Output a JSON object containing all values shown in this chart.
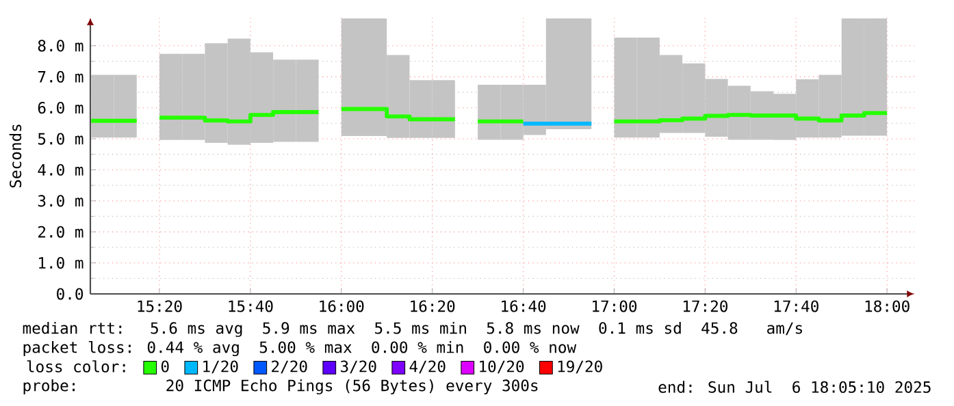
{
  "chart_data": {
    "type": "bar",
    "ylabel": "Seconds",
    "legend": "bottom",
    "legend_title": "loss color:",
    "grid": true,
    "xlim": [
      15.08,
      18.1
    ],
    "ylim": [
      0,
      8.9
    ],
    "xticks": [
      {
        "value": 15.3333,
        "label": "15:20"
      },
      {
        "value": 15.6667,
        "label": "15:40"
      },
      {
        "value": 16,
        "label": "16:00"
      },
      {
        "value": 16.3333,
        "label": "16:20"
      },
      {
        "value": 16.6667,
        "label": "16:40"
      },
      {
        "value": 17,
        "label": "17:00"
      },
      {
        "value": 17.3333,
        "label": "17:20"
      },
      {
        "value": 17.6667,
        "label": "17:40"
      },
      {
        "value": 18,
        "label": "18:00"
      }
    ],
    "yticks": [
      {
        "value": 0,
        "label": "0.0"
      },
      {
        "value": 1,
        "label": "1.0 m"
      },
      {
        "value": 2,
        "label": "2.0 m"
      },
      {
        "value": 3,
        "label": "3.0 m"
      },
      {
        "value": 4,
        "label": "4.0 m"
      },
      {
        "value": 5,
        "label": "5.0 m"
      },
      {
        "value": 6,
        "label": "6.0 m"
      },
      {
        "value": 7,
        "label": "7.0 m"
      },
      {
        "value": 8,
        "label": "8.0 m"
      }
    ],
    "annotations": [
      "median rtt:  5.6 ms avg  5.9 ms max  5.5 ms min  5.8 ms now  0.1 ms sd  45.8   am/s",
      "packet loss: 0.44 % avg  5.00 % max  0.00 % min  0.00 % now",
      "probe:       20 ICMP Echo Pings (56 Bytes) every 300s",
      "end: Sun Jul  6 18:05:10 2025"
    ],
    "series": [
      {
        "color": "#c4c4c4",
        "x": [
          15.125,
          15.2083,
          15.375,
          15.4583,
          15.5417,
          15.625,
          15.7083,
          15.7917,
          15.875,
          16.0417,
          16.125,
          16.2083,
          16.2917,
          16.375,
          16.5417,
          16.625,
          16.7083,
          16.7917,
          16.875,
          17.0417,
          17.125,
          17.2083,
          17.2917,
          17.375,
          17.4583,
          17.5417,
          17.625,
          17.7083,
          17.7917,
          17.875,
          17.9583
        ],
        "base": [
          5.04,
          5.04,
          4.96,
          4.96,
          4.87,
          4.81,
          4.87,
          4.9,
          4.9,
          5.09,
          5.09,
          5.03,
          5.03,
          5.03,
          4.97,
          4.97,
          5.12,
          5.31,
          5.31,
          5.04,
          5.04,
          5.19,
          5.19,
          5.07,
          4.97,
          4.97,
          4.96,
          5.04,
          5.04,
          5.1,
          5.1
        ],
        "values": [
          2.02,
          2.02,
          2.78,
          2.78,
          3.21,
          3.42,
          2.92,
          2.65,
          2.65,
          3.79,
          3.79,
          2.67,
          1.86,
          1.86,
          1.77,
          1.77,
          1.62,
          3.57,
          3.57,
          3.22,
          3.22,
          2.51,
          2.24,
          1.86,
          1.74,
          1.56,
          1.49,
          1.88,
          2.02,
          3.78,
          3.78
        ]
      },
      {
        "type": "step",
        "name": "0",
        "color": "#26ff00",
        "x": [
          15.0833,
          15.1667,
          15.3333,
          15.4167,
          15.5,
          15.5833,
          15.6667,
          15.75,
          15.8333,
          16.0,
          16.0833,
          16.1667,
          16.25,
          16.3333,
          16.5,
          16.5833,
          16.6667,
          16.75,
          16.8333,
          17.0,
          17.0833,
          17.1667,
          17.25,
          17.3333,
          17.4167,
          17.5,
          17.5833,
          17.6667,
          17.75,
          17.8333,
          17.9167,
          18.0
        ],
        "values": [
          5.58,
          5.58,
          5.68,
          5.68,
          5.59,
          5.56,
          5.77,
          5.86,
          5.86,
          5.96,
          5.96,
          5.72,
          5.63,
          5.63,
          5.56,
          5.56,
          null,
          null,
          null,
          5.56,
          5.56,
          5.6,
          5.65,
          5.74,
          5.77,
          5.75,
          5.75,
          5.65,
          5.59,
          5.75,
          5.83,
          5.83
        ]
      },
      {
        "type": "step",
        "name": "1/20",
        "color": "#00b8ff",
        "x": [
          16.6667,
          16.75,
          16.8333,
          16.9167
        ],
        "values": [
          5.49,
          5.49,
          5.49,
          5.49
        ]
      },
      {
        "type": "step",
        "name": "2/20",
        "color": "#0059ff"
      },
      {
        "type": "step",
        "name": "3/20",
        "color": "#5e00ff"
      },
      {
        "type": "step",
        "name": "4/20",
        "color": "#7e00ff"
      },
      {
        "type": "step",
        "name": "10/20",
        "color": "#dd00ff"
      },
      {
        "type": "step",
        "name": "19/20",
        "color": "#ff0000"
      }
    ]
  }
}
